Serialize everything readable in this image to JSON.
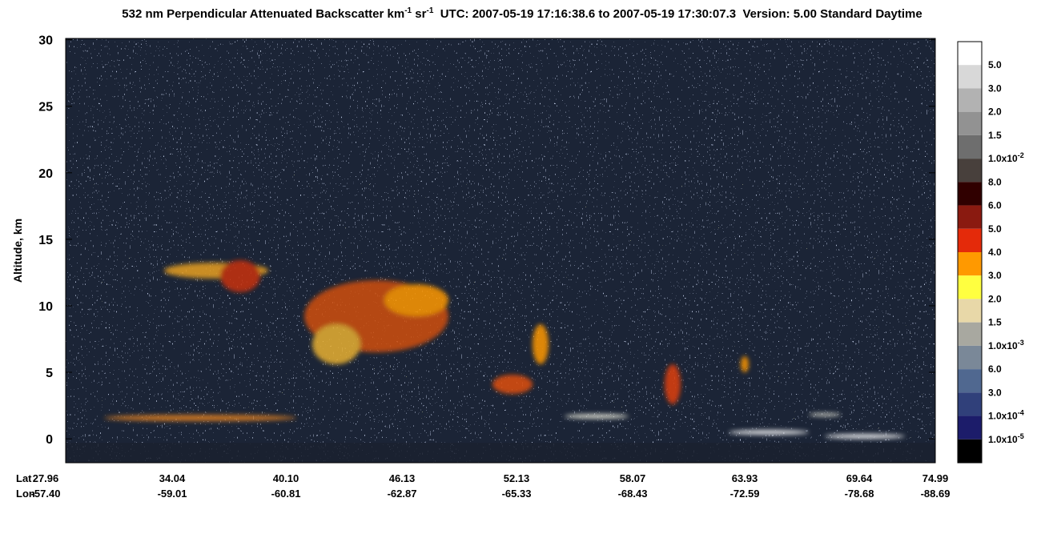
{
  "chart_data": {
    "type": "heatmap",
    "title": {
      "main": "532 nm Perpendicular Attenuated Backscatter km",
      "exp1": "-1",
      "unit2": " sr",
      "exp2": "-1",
      "rest": "  UTC: 2007-05-19 17:16:38.6 to 2007-05-19 17:30:07.3  Version: 5.00 Standard Daytime"
    },
    "ylabel": "Altitude, km",
    "ylim": [
      -1.8,
      30.1
    ],
    "yticks": [
      0,
      5,
      10,
      15,
      20,
      25,
      30
    ],
    "x_rows": [
      {
        "name": "Lat",
        "labels": [
          "27.96",
          "34.04",
          "40.10",
          "46.13",
          "52.13",
          "58.07",
          "63.93",
          "69.64",
          "74.99"
        ]
      },
      {
        "name": "Lon",
        "labels": [
          "-57.40",
          "-59.01",
          "-60.81",
          "-62.87",
          "-65.33",
          "-68.43",
          "-72.59",
          "-78.68",
          "-88.69"
        ]
      }
    ],
    "colorbar": {
      "colors": [
        "#ffffff",
        "#d8d8d8",
        "#b2b2b2",
        "#929292",
        "#6e6e6e",
        "#48403c",
        "#300000",
        "#8a1a10",
        "#e42a0a",
        "#ff9900",
        "#ffff40",
        "#e8d8a8",
        "#a8a8a0",
        "#7a8898",
        "#506890",
        "#30407a",
        "#1c1c6a",
        "#000000"
      ],
      "labels": [
        "5.0",
        "3.0",
        "2.0",
        "1.5",
        {
          "text": "1.0x10",
          "sup": "-2"
        },
        "8.0",
        "6.0",
        "5.0",
        "4.0",
        "3.0",
        "2.0",
        "1.5",
        {
          "text": "1.0x10",
          "sup": "-3"
        },
        "6.0",
        "3.0",
        {
          "text": "1.0x10",
          "sup": "-4"
        },
        {
          "text": "1.0x10",
          "sup": "-5"
        }
      ]
    }
  }
}
